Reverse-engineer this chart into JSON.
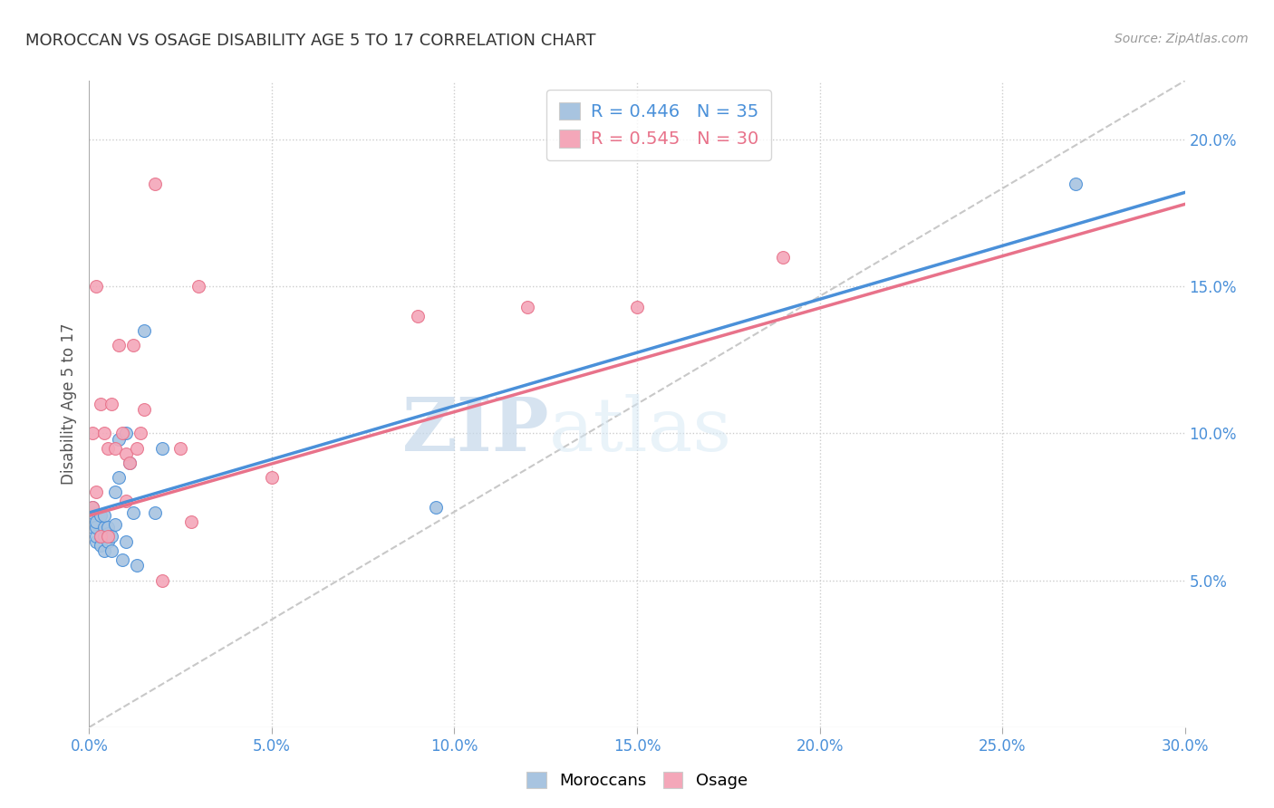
{
  "title": "MOROCCAN VS OSAGE DISABILITY AGE 5 TO 17 CORRELATION CHART",
  "source": "Source: ZipAtlas.com",
  "ylabel": "Disability Age 5 to 17",
  "xlim": [
    0.0,
    0.3
  ],
  "ylim": [
    0.0,
    0.22
  ],
  "xticks": [
    0.0,
    0.05,
    0.1,
    0.15,
    0.2,
    0.25,
    0.3
  ],
  "yticks_right": [
    0.05,
    0.1,
    0.15,
    0.2
  ],
  "moroccan_color": "#a8c4e0",
  "osage_color": "#f4a7b9",
  "moroccan_line_color": "#4a90d9",
  "osage_line_color": "#e8728a",
  "diagonal_color": "#c8c8c8",
  "R_moroccan": 0.446,
  "N_moroccan": 35,
  "R_osage": 0.545,
  "N_osage": 30,
  "moroccan_x": [
    0.001,
    0.001,
    0.001,
    0.001,
    0.002,
    0.002,
    0.002,
    0.002,
    0.003,
    0.003,
    0.003,
    0.004,
    0.004,
    0.004,
    0.004,
    0.005,
    0.005,
    0.005,
    0.006,
    0.006,
    0.007,
    0.007,
    0.008,
    0.008,
    0.009,
    0.01,
    0.01,
    0.011,
    0.012,
    0.013,
    0.015,
    0.018,
    0.02,
    0.095,
    0.27
  ],
  "moroccan_y": [
    0.068,
    0.072,
    0.073,
    0.075,
    0.063,
    0.065,
    0.068,
    0.07,
    0.062,
    0.065,
    0.072,
    0.06,
    0.065,
    0.068,
    0.072,
    0.063,
    0.066,
    0.068,
    0.06,
    0.065,
    0.069,
    0.08,
    0.085,
    0.098,
    0.057,
    0.063,
    0.1,
    0.09,
    0.073,
    0.055,
    0.135,
    0.073,
    0.095,
    0.075,
    0.185
  ],
  "osage_x": [
    0.001,
    0.001,
    0.002,
    0.002,
    0.003,
    0.003,
    0.004,
    0.005,
    0.005,
    0.006,
    0.007,
    0.008,
    0.009,
    0.01,
    0.01,
    0.011,
    0.012,
    0.013,
    0.014,
    0.015,
    0.018,
    0.02,
    0.025,
    0.028,
    0.03,
    0.05,
    0.09,
    0.12,
    0.15,
    0.19
  ],
  "osage_y": [
    0.075,
    0.1,
    0.08,
    0.15,
    0.065,
    0.11,
    0.1,
    0.065,
    0.095,
    0.11,
    0.095,
    0.13,
    0.1,
    0.093,
    0.077,
    0.09,
    0.13,
    0.095,
    0.1,
    0.108,
    0.185,
    0.05,
    0.095,
    0.07,
    0.15,
    0.085,
    0.14,
    0.143,
    0.143,
    0.16
  ],
  "watermark_zip": "ZIP",
  "watermark_atlas": "atlas",
  "legend_moroccan": "Moroccans",
  "legend_osage": "Osage",
  "moroccan_line_start_y": 0.073,
  "moroccan_line_end_y": 0.182,
  "osage_line_start_y": 0.072,
  "osage_line_end_y": 0.178
}
